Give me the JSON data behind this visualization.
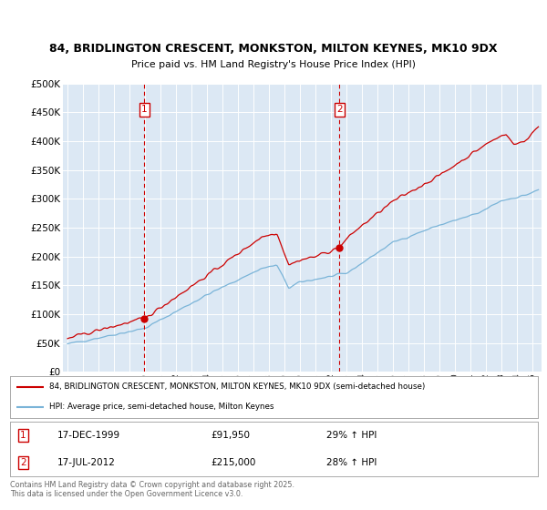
{
  "title_line1": "84, BRIDLINGTON CRESCENT, MONKSTON, MILTON KEYNES, MK10 9DX",
  "title_line2": "Price paid vs. HM Land Registry's House Price Index (HPI)",
  "bg_color": "#dce8f4",
  "grid_color": "#ffffff",
  "red_line_color": "#cc0000",
  "blue_line_color": "#7ab4d8",
  "ylim": [
    0,
    500000
  ],
  "yticks": [
    0,
    50000,
    100000,
    150000,
    200000,
    250000,
    300000,
    350000,
    400000,
    450000,
    500000
  ],
  "ytick_labels": [
    "£0",
    "£50K",
    "£100K",
    "£150K",
    "£200K",
    "£250K",
    "£300K",
    "£350K",
    "£400K",
    "£450K",
    "£500K"
  ],
  "xlim_start": 1994.7,
  "xlim_end": 2025.6,
  "xticks": [
    1995,
    1996,
    1997,
    1998,
    1999,
    2000,
    2001,
    2002,
    2003,
    2004,
    2005,
    2006,
    2007,
    2008,
    2009,
    2010,
    2011,
    2012,
    2013,
    2014,
    2015,
    2016,
    2017,
    2018,
    2019,
    2020,
    2021,
    2022,
    2023,
    2024,
    2025
  ],
  "purchase1_x": 1999.96,
  "purchase1_y": 91950,
  "purchase1_label": "1",
  "purchase1_date": "17-DEC-1999",
  "purchase1_price": "£91,950",
  "purchase1_hpi": "29% ↑ HPI",
  "purchase2_x": 2012.54,
  "purchase2_y": 215000,
  "purchase2_label": "2",
  "purchase2_date": "17-JUL-2012",
  "purchase2_price": "£215,000",
  "purchase2_hpi": "28% ↑ HPI",
  "legend_red_label": "84, BRIDLINGTON CRESCENT, MONKSTON, MILTON KEYNES, MK10 9DX (semi-detached house)",
  "legend_blue_label": "HPI: Average price, semi-detached house, Milton Keynes",
  "footer_text": "Contains HM Land Registry data © Crown copyright and database right 2025.\nThis data is licensed under the Open Government Licence v3.0.",
  "dashed_vline_color": "#cc0000",
  "marker_box_color": "#cc0000"
}
